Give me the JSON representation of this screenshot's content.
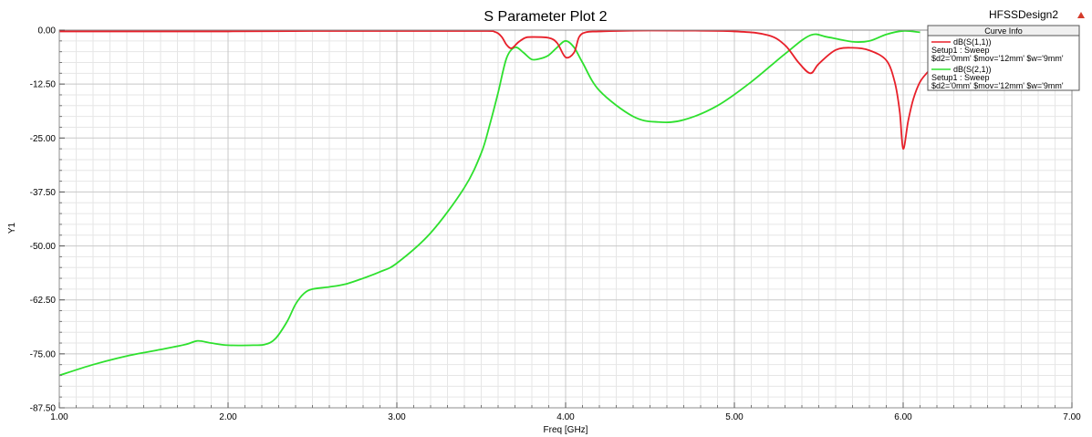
{
  "chart_data": {
    "type": "line",
    "title": "S Parameter Plot 2",
    "design_name": "HFSSDesign2",
    "xlabel": "Freq [GHz]",
    "ylabel": "Y1",
    "xlim": [
      1.0,
      7.0
    ],
    "ylim": [
      -87.5,
      0.0
    ],
    "x_ticks": [
      "1.00",
      "2.00",
      "3.00",
      "4.00",
      "5.00",
      "6.00",
      "7.00"
    ],
    "y_ticks": [
      "0.00",
      "-12.50",
      "-25.00",
      "-37.50",
      "-50.00",
      "-62.50",
      "-75.00",
      "-87.50"
    ],
    "grid": true,
    "legend": {
      "title": "Curve Info",
      "placement": "top-right",
      "entries": [
        {
          "label": "dB(S(1,1))",
          "setup": "Setup1 : Sweep",
          "params": "$d2='0mm' $mov='12mm' $w='9mm'",
          "color": "#e8202a"
        },
        {
          "label": "dB(S(2,1))",
          "setup": "Setup1 : Sweep",
          "params": "$d2='0mm' $mov='12mm' $w='9mm'",
          "color": "#2ee02e"
        }
      ]
    },
    "series": [
      {
        "name": "dB(S(1,1))",
        "color": "#e8202a",
        "x": [
          1.0,
          1.5,
          2.0,
          2.5,
          3.0,
          3.5,
          3.58,
          3.62,
          3.65,
          3.68,
          3.72,
          3.76,
          3.8,
          3.9,
          3.95,
          4.0,
          4.05,
          4.08,
          4.12,
          4.2,
          4.5,
          5.0,
          5.2,
          5.3,
          5.38,
          5.45,
          5.5,
          5.6,
          5.7,
          5.8,
          5.9,
          5.95,
          5.98,
          6.0,
          6.03,
          6.06,
          6.1,
          6.15
        ],
        "y": [
          -0.3,
          -0.3,
          -0.3,
          -0.2,
          -0.2,
          -0.2,
          -0.4,
          -1.5,
          -3.4,
          -4.2,
          -2.8,
          -1.8,
          -1.6,
          -1.8,
          -3.0,
          -6.3,
          -5.2,
          -1.6,
          -0.5,
          -0.3,
          -0.1,
          -0.3,
          -1.2,
          -3.5,
          -7.5,
          -10.0,
          -7.8,
          -4.6,
          -4.1,
          -4.7,
          -7.0,
          -12.0,
          -19.0,
          -27.5,
          -21.0,
          -16.0,
          -12.0,
          -9.5
        ]
      },
      {
        "name": "dB(S(2,1))",
        "color": "#2ee02e",
        "x": [
          1.0,
          1.2,
          1.4,
          1.6,
          1.75,
          1.82,
          1.9,
          2.0,
          2.15,
          2.22,
          2.28,
          2.35,
          2.4,
          2.45,
          2.5,
          2.6,
          2.7,
          2.8,
          2.9,
          3.0,
          3.2,
          3.4,
          3.5,
          3.55,
          3.6,
          3.65,
          3.7,
          3.75,
          3.8,
          3.85,
          3.9,
          3.95,
          4.0,
          4.05,
          4.1,
          4.2,
          4.4,
          4.55,
          4.7,
          4.9,
          5.1,
          5.3,
          5.45,
          5.55,
          5.7,
          5.8,
          5.9,
          6.0,
          6.1
        ],
        "y": [
          -80.0,
          -77.5,
          -75.5,
          -74.0,
          -72.8,
          -72.0,
          -72.5,
          -73.0,
          -73.0,
          -72.8,
          -71.5,
          -67.5,
          -63.5,
          -61.0,
          -60.0,
          -59.5,
          -58.8,
          -57.5,
          -56.0,
          -54.0,
          -47.0,
          -36.5,
          -28.5,
          -22.0,
          -14.5,
          -6.5,
          -4.0,
          -5.2,
          -6.8,
          -6.6,
          -5.8,
          -4.0,
          -2.5,
          -4.0,
          -7.5,
          -14.0,
          -20.0,
          -21.3,
          -20.8,
          -17.5,
          -12.0,
          -5.5,
          -1.2,
          -1.6,
          -2.7,
          -2.5,
          -1.0,
          -0.2,
          -0.5
        ]
      }
    ]
  }
}
